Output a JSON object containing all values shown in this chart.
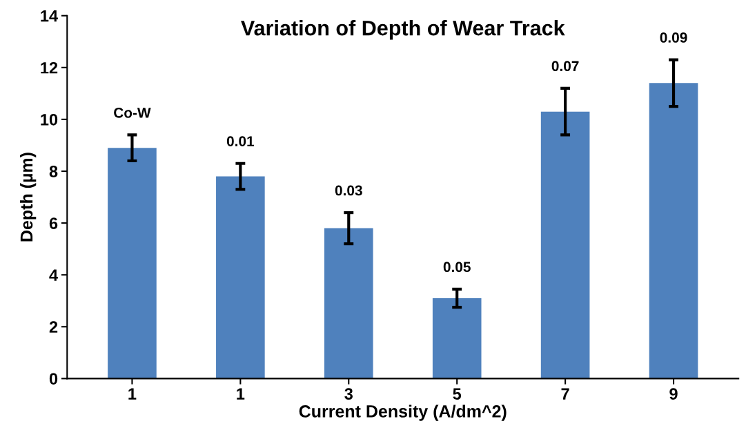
{
  "chart_data": {
    "type": "bar",
    "title": "Variation of Depth of Wear Track",
    "xlabel": "Current Density (A/dm^2)",
    "ylabel": "Depth (µm)",
    "categories": [
      "1",
      "1",
      "3",
      "5",
      "7",
      "9"
    ],
    "values": [
      8.9,
      7.8,
      5.8,
      3.1,
      10.3,
      11.4
    ],
    "errors": [
      0.5,
      0.5,
      0.6,
      0.35,
      0.9,
      0.9
    ],
    "color": "#4f81bd",
    "annotations": [
      "Co-W",
      "0.01",
      "0.03",
      "0.05",
      "0.07",
      "0.09"
    ],
    "ylim": [
      0,
      14
    ],
    "yticks": [
      0,
      2,
      4,
      6,
      8,
      10,
      12,
      14
    ],
    "grid": false
  }
}
